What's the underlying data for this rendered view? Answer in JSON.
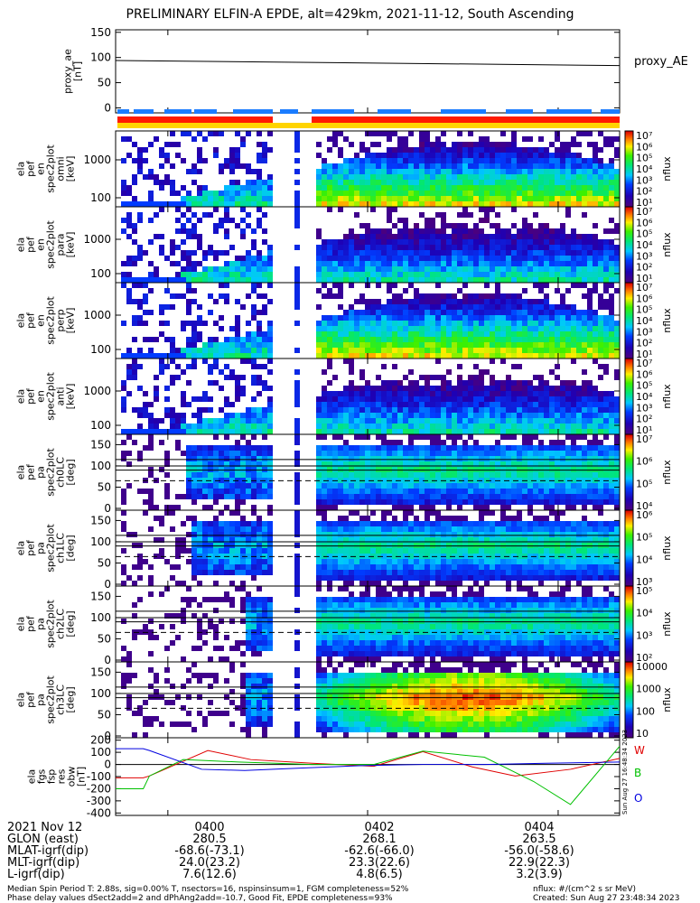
{
  "title": "PRELIMINARY ELFIN-A EPDE, alt=429km, 2021-11-12, South Ascending",
  "colors": {
    "red_bar": "#ff1a00",
    "yellow_bar": "#ffd400",
    "blue_bar": "#1a7cff",
    "line_W": "#e00000",
    "line_B": "#00c000",
    "line_O": "#0000e0"
  },
  "chart_data": [
    {
      "type": "line",
      "name": "proxy_ae",
      "panel": 0,
      "ylabel": "proxy_ae\n[nT]",
      "legend": "proxy_AE",
      "ylim": [
        -10,
        155
      ],
      "yticks": [
        "0",
        "50",
        "100",
        "150"
      ],
      "series": [
        {
          "x_min": [
            0,
            8.2
          ],
          "y": [
            94,
            84
          ]
        }
      ]
    },
    {
      "type": "heatmap",
      "panel": 1,
      "ylabel": "ela\npef\nen\nspec2plot\nomni\n[keV]",
      "yticks": [
        "100",
        "1000"
      ],
      "cbar_ticks": [
        "10⁷",
        "10⁶",
        "10⁵",
        "10⁴",
        "10³",
        "10²",
        "10¹"
      ],
      "cbar_label": "nflux",
      "log": true
    },
    {
      "type": "heatmap",
      "panel": 2,
      "ylabel": "ela\npef\nen\nspec2plot\npara\n[keV]",
      "yticks": [
        "100",
        "1000"
      ],
      "cbar_ticks": [
        "10⁷",
        "10⁶",
        "10⁵",
        "10⁴",
        "10³",
        "10²",
        "10¹"
      ],
      "cbar_label": "nflux",
      "log": true
    },
    {
      "type": "heatmap",
      "panel": 3,
      "ylabel": "ela\npef\nen\nspec2plot\nperp\n[keV]",
      "yticks": [
        "100",
        "1000"
      ],
      "cbar_ticks": [
        "10⁷",
        "10⁶",
        "10⁵",
        "10⁴",
        "10³",
        "10²",
        "10¹"
      ],
      "cbar_label": "nflux",
      "log": true
    },
    {
      "type": "heatmap",
      "panel": 4,
      "ylabel": "ela\npef\nen\nspec2plot\nanti\n[keV]",
      "yticks": [
        "100",
        "1000"
      ],
      "cbar_ticks": [
        "10⁷",
        "10⁶",
        "10⁵",
        "10⁴",
        "10³",
        "10²",
        "10¹"
      ],
      "cbar_label": "nflux",
      "log": true
    },
    {
      "type": "heatmap",
      "panel": 5,
      "ylabel": "ela\npef\npa\nspec2plot\nch0LC\n[deg]",
      "yticks": [
        "0",
        "50",
        "100",
        "150"
      ],
      "cbar_ticks": [
        "10⁷",
        "10⁶",
        "10⁵",
        "10⁴"
      ],
      "cbar_label": "nflux",
      "log": true
    },
    {
      "type": "heatmap",
      "panel": 6,
      "ylabel": "ela\npef\npa\nspec2plot\nch1LC\n[deg]",
      "yticks": [
        "0",
        "50",
        "100",
        "150"
      ],
      "cbar_ticks": [
        "10⁶",
        "10⁵",
        "10⁴",
        "10³"
      ],
      "cbar_label": "nflux",
      "log": true
    },
    {
      "type": "heatmap",
      "panel": 7,
      "ylabel": "ela\npef\npa\nspec2plot\nch2LC\n[deg]",
      "yticks": [
        "0",
        "50",
        "100",
        "150"
      ],
      "cbar_ticks": [
        "10⁵",
        "10⁴",
        "10³",
        "10²"
      ],
      "cbar_label": "nflux",
      "log": true
    },
    {
      "type": "heatmap",
      "panel": 8,
      "ylabel": "ela\npef\npa\nspec2plot\nch3LC\n[deg]",
      "yticks": [
        "0",
        "50",
        "100",
        "150"
      ],
      "cbar_ticks": [
        "10000",
        "1000",
        "100",
        "10"
      ],
      "cbar_label": "nflux",
      "log": true
    },
    {
      "type": "line",
      "panel": 9,
      "ylabel": "ela\nfgs\nfsp\nres\nobw\n[nT]",
      "ylim": [
        -420,
        220
      ],
      "yticks": [
        "200",
        "100",
        "0",
        "-100",
        "-200",
        "-300",
        "-400"
      ],
      "series": [
        {
          "name": "W",
          "x_min": [
            0,
            0.45,
            0.55,
            1.5,
            2.2,
            3.2,
            4.2,
            5.0,
            5.8,
            6.5,
            7.4,
            8.2
          ],
          "y": [
            -110,
            -110,
            -95,
            115,
            40,
            10,
            -15,
            105,
            -20,
            -95,
            -40,
            50
          ]
        },
        {
          "name": "B",
          "x_min": [
            0,
            0.45,
            0.55,
            1.1,
            2.0,
            3.2,
            4.2,
            5.0,
            6.0,
            6.8,
            7.4,
            8.2
          ],
          "y": [
            -200,
            -200,
            -95,
            40,
            20,
            0,
            0,
            110,
            60,
            -140,
            -330,
            150
          ]
        },
        {
          "name": "O",
          "x_min": [
            0,
            0.45,
            0.55,
            1.4,
            2.1,
            3.0,
            4.0,
            5.0,
            6.0,
            7.0,
            8.2
          ],
          "y": [
            130,
            130,
            115,
            -40,
            -50,
            -30,
            -10,
            0,
            0,
            10,
            20
          ]
        }
      ]
    }
  ],
  "x_axis": {
    "ticks": [
      "0400",
      "0402",
      "0404"
    ]
  },
  "side_stamp": "Sun Aug 27 16:48:34 2023",
  "footer": {
    "date": "2021 Nov 12",
    "rows": [
      {
        "label": "GLON (east)",
        "values": [
          "280.5",
          "268.1",
          "263.5"
        ]
      },
      {
        "label": "MLAT-igrf(dip)",
        "values": [
          "-68.6(-73.1)",
          "-62.6(-66.0)",
          "-56.0(-58.6)"
        ]
      },
      {
        "label": "MLT-igrf(dip)",
        "values": [
          "24.0(23.2)",
          "23.3(22.6)",
          "22.9(22.3)"
        ]
      },
      {
        "label": "L-igrf(dip)",
        "values": [
          "7.6(12.6)",
          "4.8(6.5)",
          "3.2(3.9)"
        ]
      }
    ],
    "note1": "Median Spin Period T: 2.88s, sig=0.00% T, nsectors=16, nspinsinsum=1, FGM completeness=52%",
    "note2": "Phase delay values dSect2add=2 and dPhAng2add=-10.7, Good Fit, EPDE completeness=93%",
    "units": "nflux: #/(cm^2 s sr MeV)",
    "created": "Created: Sun Aug 27 23:48:34 2023"
  }
}
